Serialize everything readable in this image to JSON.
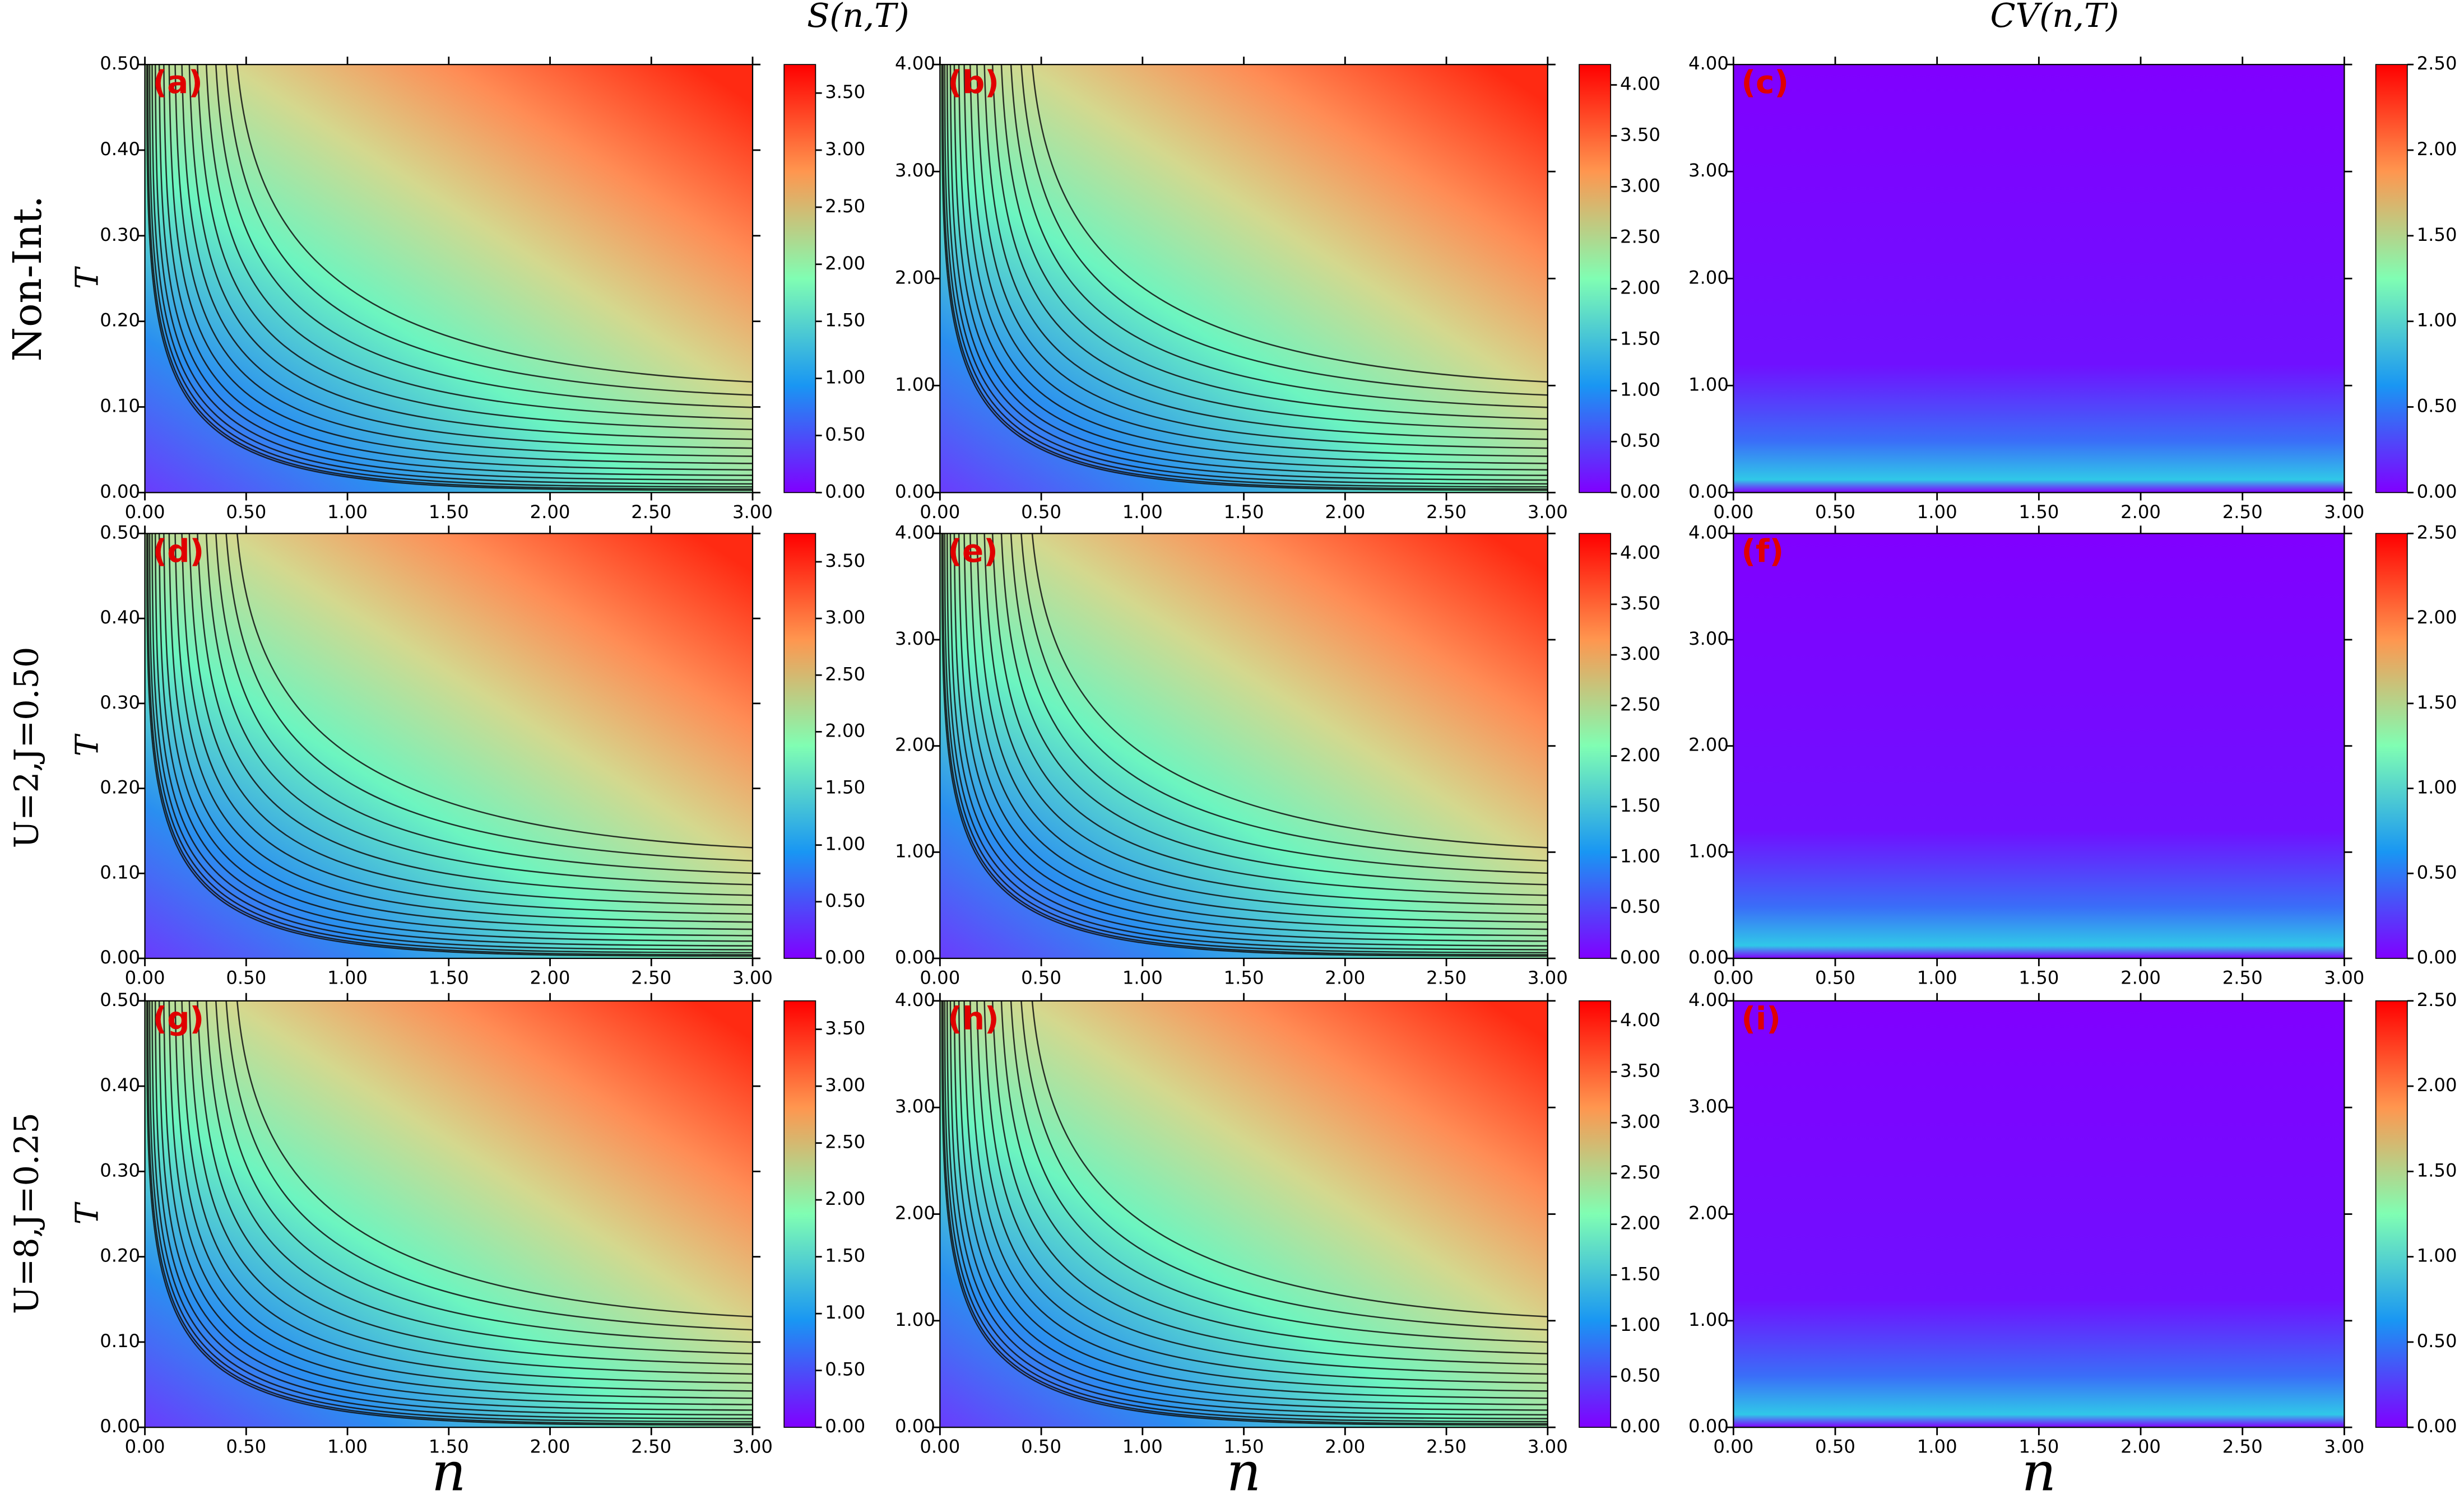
{
  "figure": {
    "column_titles": [
      "S(n,T)",
      "CV(n,T)"
    ],
    "row_labels": [
      "Non-Int.",
      "U=2,J=0.50",
      "U=8,J=0.25"
    ]
  },
  "chart_data": [
    {
      "type": "heatmap",
      "quantity": "S",
      "label": "(a)",
      "ylabel": "T",
      "xlim": [
        0,
        3
      ],
      "ylim": [
        0,
        0.5
      ],
      "xticks": [
        {
          "value": 0,
          "label": "0.00"
        },
        {
          "value": 0.5,
          "label": "0.50"
        },
        {
          "value": 1,
          "label": "1.00"
        },
        {
          "value": 1.5,
          "label": "1.50"
        },
        {
          "value": 2,
          "label": "2.00"
        },
        {
          "value": 2.5,
          "label": "2.50"
        },
        {
          "value": 3,
          "label": "3.00"
        }
      ],
      "yticks": [
        {
          "value": 0,
          "label": "0.00"
        },
        {
          "value": 0.1,
          "label": "0.10"
        },
        {
          "value": 0.2,
          "label": "0.20"
        },
        {
          "value": 0.3,
          "label": "0.30"
        },
        {
          "value": 0.4,
          "label": "0.40"
        },
        {
          "value": 0.5,
          "label": "0.50"
        }
      ],
      "colorbar_lim": [
        0,
        3.75
      ],
      "colorbar_ticks": [
        {
          "value": 0,
          "label": "0.00"
        },
        {
          "value": 0.5,
          "label": "0.50"
        },
        {
          "value": 1,
          "label": "1.00"
        },
        {
          "value": 1.5,
          "label": "1.50"
        },
        {
          "value": 2,
          "label": "2.00"
        },
        {
          "value": 2.5,
          "label": "2.50"
        },
        {
          "value": 3,
          "label": "3.00"
        },
        {
          "value": 3.5,
          "label": "3.50"
        }
      ]
    },
    {
      "type": "heatmap",
      "quantity": "S",
      "label": "(b)",
      "xlim": [
        0,
        3
      ],
      "ylim": [
        0,
        4
      ],
      "xticks": [
        {
          "value": 0,
          "label": "0.00"
        },
        {
          "value": 0.5,
          "label": "0.50"
        },
        {
          "value": 1,
          "label": "1.00"
        },
        {
          "value": 1.5,
          "label": "1.50"
        },
        {
          "value": 2,
          "label": "2.00"
        },
        {
          "value": 2.5,
          "label": "2.50"
        },
        {
          "value": 3,
          "label": "3.00"
        }
      ],
      "yticks": [
        {
          "value": 0,
          "label": "0.00"
        },
        {
          "value": 1,
          "label": "1.00"
        },
        {
          "value": 2,
          "label": "2.00"
        },
        {
          "value": 3,
          "label": "3.00"
        },
        {
          "value": 4,
          "label": "4.00"
        }
      ],
      "colorbar_lim": [
        0,
        4.2
      ],
      "colorbar_ticks": [
        {
          "value": 0,
          "label": "0.00"
        },
        {
          "value": 0.5,
          "label": "0.50"
        },
        {
          "value": 1,
          "label": "1.00"
        },
        {
          "value": 1.5,
          "label": "1.50"
        },
        {
          "value": 2,
          "label": "2.00"
        },
        {
          "value": 2.5,
          "label": "2.50"
        },
        {
          "value": 3,
          "label": "3.00"
        },
        {
          "value": 3.5,
          "label": "3.50"
        },
        {
          "value": 4,
          "label": "4.00"
        }
      ]
    },
    {
      "type": "heatmap",
      "quantity": "CV",
      "label": "(c)",
      "xlim": [
        0,
        3
      ],
      "ylim": [
        0,
        4
      ],
      "xticks": [
        {
          "value": 0,
          "label": "0.00"
        },
        {
          "value": 0.5,
          "label": "0.50"
        },
        {
          "value": 1,
          "label": "1.00"
        },
        {
          "value": 1.5,
          "label": "1.50"
        },
        {
          "value": 2,
          "label": "2.00"
        },
        {
          "value": 2.5,
          "label": "2.50"
        },
        {
          "value": 3,
          "label": "3.00"
        }
      ],
      "yticks": [
        {
          "value": 0,
          "label": "0.00"
        },
        {
          "value": 1,
          "label": "1.00"
        },
        {
          "value": 2,
          "label": "2.00"
        },
        {
          "value": 3,
          "label": "3.00"
        },
        {
          "value": 4,
          "label": "4.00"
        }
      ],
      "colorbar_lim": [
        0,
        2.5
      ],
      "colorbar_ticks": [
        {
          "value": 0,
          "label": "0.00"
        },
        {
          "value": 0.5,
          "label": "0.50"
        },
        {
          "value": 1,
          "label": "1.00"
        },
        {
          "value": 1.5,
          "label": "1.50"
        },
        {
          "value": 2,
          "label": "2.00"
        },
        {
          "value": 2.5,
          "label": "2.50"
        }
      ]
    },
    {
      "type": "heatmap",
      "quantity": "S",
      "label": "(d)",
      "ylabel": "T",
      "xlim": [
        0,
        3
      ],
      "ylim": [
        0,
        0.5
      ],
      "xticks": [
        {
          "value": 0,
          "label": "0.00"
        },
        {
          "value": 0.5,
          "label": "0.50"
        },
        {
          "value": 1,
          "label": "1.00"
        },
        {
          "value": 1.5,
          "label": "1.50"
        },
        {
          "value": 2,
          "label": "2.00"
        },
        {
          "value": 2.5,
          "label": "2.50"
        },
        {
          "value": 3,
          "label": "3.00"
        }
      ],
      "yticks": [
        {
          "value": 0,
          "label": "0.00"
        },
        {
          "value": 0.1,
          "label": "0.10"
        },
        {
          "value": 0.2,
          "label": "0.20"
        },
        {
          "value": 0.3,
          "label": "0.30"
        },
        {
          "value": 0.4,
          "label": "0.40"
        },
        {
          "value": 0.5,
          "label": "0.50"
        }
      ],
      "colorbar_lim": [
        0,
        3.75
      ],
      "colorbar_ticks": [
        {
          "value": 0,
          "label": "0.00"
        },
        {
          "value": 0.5,
          "label": "0.50"
        },
        {
          "value": 1,
          "label": "1.00"
        },
        {
          "value": 1.5,
          "label": "1.50"
        },
        {
          "value": 2,
          "label": "2.00"
        },
        {
          "value": 2.5,
          "label": "2.50"
        },
        {
          "value": 3,
          "label": "3.00"
        },
        {
          "value": 3.5,
          "label": "3.50"
        }
      ]
    },
    {
      "type": "heatmap",
      "quantity": "S",
      "label": "(e)",
      "xlim": [
        0,
        3
      ],
      "ylim": [
        0,
        4
      ],
      "xticks": [
        {
          "value": 0,
          "label": "0.00"
        },
        {
          "value": 0.5,
          "label": "0.50"
        },
        {
          "value": 1,
          "label": "1.00"
        },
        {
          "value": 1.5,
          "label": "1.50"
        },
        {
          "value": 2,
          "label": "2.00"
        },
        {
          "value": 2.5,
          "label": "2.50"
        },
        {
          "value": 3,
          "label": "3.00"
        }
      ],
      "yticks": [
        {
          "value": 0,
          "label": "0.00"
        },
        {
          "value": 1,
          "label": "1.00"
        },
        {
          "value": 2,
          "label": "2.00"
        },
        {
          "value": 3,
          "label": "3.00"
        },
        {
          "value": 4,
          "label": "4.00"
        }
      ],
      "colorbar_lim": [
        0,
        4.2
      ],
      "colorbar_ticks": [
        {
          "value": 0,
          "label": "0.00"
        },
        {
          "value": 0.5,
          "label": "0.50"
        },
        {
          "value": 1,
          "label": "1.00"
        },
        {
          "value": 1.5,
          "label": "1.50"
        },
        {
          "value": 2,
          "label": "2.00"
        },
        {
          "value": 2.5,
          "label": "2.50"
        },
        {
          "value": 3,
          "label": "3.00"
        },
        {
          "value": 3.5,
          "label": "3.50"
        },
        {
          "value": 4,
          "label": "4.00"
        }
      ]
    },
    {
      "type": "heatmap",
      "quantity": "CV",
      "label": "(f)",
      "xlim": [
        0,
        3
      ],
      "ylim": [
        0,
        4
      ],
      "xticks": [
        {
          "value": 0,
          "label": "0.00"
        },
        {
          "value": 0.5,
          "label": "0.50"
        },
        {
          "value": 1,
          "label": "1.00"
        },
        {
          "value": 1.5,
          "label": "1.50"
        },
        {
          "value": 2,
          "label": "2.00"
        },
        {
          "value": 2.5,
          "label": "2.50"
        },
        {
          "value": 3,
          "label": "3.00"
        }
      ],
      "yticks": [
        {
          "value": 0,
          "label": "0.00"
        },
        {
          "value": 1,
          "label": "1.00"
        },
        {
          "value": 2,
          "label": "2.00"
        },
        {
          "value": 3,
          "label": "3.00"
        },
        {
          "value": 4,
          "label": "4.00"
        }
      ],
      "colorbar_lim": [
        0,
        2.5
      ],
      "colorbar_ticks": [
        {
          "value": 0,
          "label": "0.00"
        },
        {
          "value": 0.5,
          "label": "0.50"
        },
        {
          "value": 1,
          "label": "1.00"
        },
        {
          "value": 1.5,
          "label": "1.50"
        },
        {
          "value": 2,
          "label": "2.00"
        },
        {
          "value": 2.5,
          "label": "2.50"
        }
      ]
    },
    {
      "type": "heatmap",
      "quantity": "S",
      "label": "(g)",
      "ylabel": "T",
      "xlabel": "n",
      "xlim": [
        0,
        3
      ],
      "ylim": [
        0,
        0.5
      ],
      "xticks": [
        {
          "value": 0,
          "label": "0.00"
        },
        {
          "value": 0.5,
          "label": "0.50"
        },
        {
          "value": 1,
          "label": "1.00"
        },
        {
          "value": 1.5,
          "label": "1.50"
        },
        {
          "value": 2,
          "label": "2.00"
        },
        {
          "value": 2.5,
          "label": "2.50"
        },
        {
          "value": 3,
          "label": "3.00"
        }
      ],
      "yticks": [
        {
          "value": 0,
          "label": "0.00"
        },
        {
          "value": 0.1,
          "label": "0.10"
        },
        {
          "value": 0.2,
          "label": "0.20"
        },
        {
          "value": 0.3,
          "label": "0.30"
        },
        {
          "value": 0.4,
          "label": "0.40"
        },
        {
          "value": 0.5,
          "label": "0.50"
        }
      ],
      "colorbar_lim": [
        0,
        3.75
      ],
      "colorbar_ticks": [
        {
          "value": 0,
          "label": "0.00"
        },
        {
          "value": 0.5,
          "label": "0.50"
        },
        {
          "value": 1,
          "label": "1.00"
        },
        {
          "value": 1.5,
          "label": "1.50"
        },
        {
          "value": 2,
          "label": "2.00"
        },
        {
          "value": 2.5,
          "label": "2.50"
        },
        {
          "value": 3,
          "label": "3.00"
        },
        {
          "value": 3.5,
          "label": "3.50"
        }
      ]
    },
    {
      "type": "heatmap",
      "quantity": "S",
      "label": "(h)",
      "xlabel": "n",
      "xlim": [
        0,
        3
      ],
      "ylim": [
        0,
        4
      ],
      "xticks": [
        {
          "value": 0,
          "label": "0.00"
        },
        {
          "value": 0.5,
          "label": "0.50"
        },
        {
          "value": 1,
          "label": "1.00"
        },
        {
          "value": 1.5,
          "label": "1.50"
        },
        {
          "value": 2,
          "label": "2.00"
        },
        {
          "value": 2.5,
          "label": "2.50"
        },
        {
          "value": 3,
          "label": "3.00"
        }
      ],
      "yticks": [
        {
          "value": 0,
          "label": "0.00"
        },
        {
          "value": 1,
          "label": "1.00"
        },
        {
          "value": 2,
          "label": "2.00"
        },
        {
          "value": 3,
          "label": "3.00"
        },
        {
          "value": 4,
          "label": "4.00"
        }
      ],
      "colorbar_lim": [
        0,
        4.2
      ],
      "colorbar_ticks": [
        {
          "value": 0,
          "label": "0.00"
        },
        {
          "value": 0.5,
          "label": "0.50"
        },
        {
          "value": 1,
          "label": "1.00"
        },
        {
          "value": 1.5,
          "label": "1.50"
        },
        {
          "value": 2,
          "label": "2.00"
        },
        {
          "value": 2.5,
          "label": "2.50"
        },
        {
          "value": 3,
          "label": "3.00"
        },
        {
          "value": 3.5,
          "label": "3.50"
        },
        {
          "value": 4,
          "label": "4.00"
        }
      ]
    },
    {
      "type": "heatmap",
      "quantity": "CV",
      "label": "(i)",
      "xlabel": "n",
      "xlim": [
        0,
        3
      ],
      "ylim": [
        0,
        4
      ],
      "xticks": [
        {
          "value": 0,
          "label": "0.00"
        },
        {
          "value": 0.5,
          "label": "0.50"
        },
        {
          "value": 1,
          "label": "1.00"
        },
        {
          "value": 1.5,
          "label": "1.50"
        },
        {
          "value": 2,
          "label": "2.00"
        },
        {
          "value": 2.5,
          "label": "2.50"
        },
        {
          "value": 3,
          "label": "3.00"
        }
      ],
      "yticks": [
        {
          "value": 0,
          "label": "0.00"
        },
        {
          "value": 1,
          "label": "1.00"
        },
        {
          "value": 2,
          "label": "2.00"
        },
        {
          "value": 3,
          "label": "3.00"
        },
        {
          "value": 4,
          "label": "4.00"
        }
      ],
      "colorbar_lim": [
        0,
        2.5
      ],
      "colorbar_ticks": [
        {
          "value": 0,
          "label": "0.00"
        },
        {
          "value": 0.5,
          "label": "0.50"
        },
        {
          "value": 1,
          "label": "1.00"
        },
        {
          "value": 1.5,
          "label": "1.50"
        },
        {
          "value": 2,
          "label": "2.00"
        },
        {
          "value": 2.5,
          "label": "2.50"
        }
      ]
    }
  ]
}
